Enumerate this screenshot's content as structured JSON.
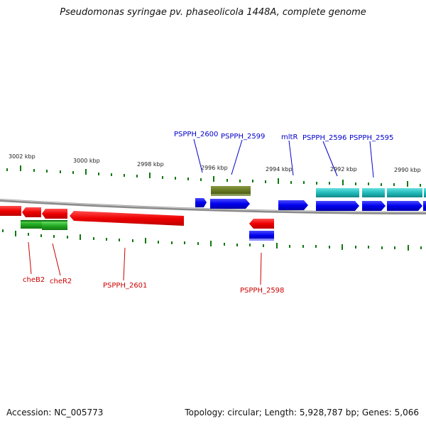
{
  "header": {
    "title": "Pseudomonas syringae pv. phaseolicola 1448A, complete genome"
  },
  "footer": {
    "accession": "Accession: NC_005773",
    "topology": "Topology: circular; Length: 5,928,787 bp; Genes: 5,066"
  },
  "axis": {
    "kbp_labels": [
      "3002 kbp",
      "3000 kbp",
      "2998 kbp",
      "2996 kbp",
      "2994 kbp",
      "2992 kbp",
      "2990 kbp"
    ]
  },
  "genes": {
    "upper_labels": [
      "PSPPH_2600",
      "PSPPH_2599",
      "mltR",
      "PSPPH_2596",
      "PSPPH_2595"
    ],
    "lower_labels": [
      "cheB2",
      "cheR2",
      "PSPPH_2601",
      "PSPPH_2598"
    ]
  },
  "colors": {
    "forward_gene": "#0000ee",
    "reverse_gene": "#ee0000",
    "cds_forward": "#22bbbb",
    "cds_olive": "#667722",
    "cds_green": "#22aa22",
    "backbone": "#888888",
    "tick": "#117711"
  }
}
